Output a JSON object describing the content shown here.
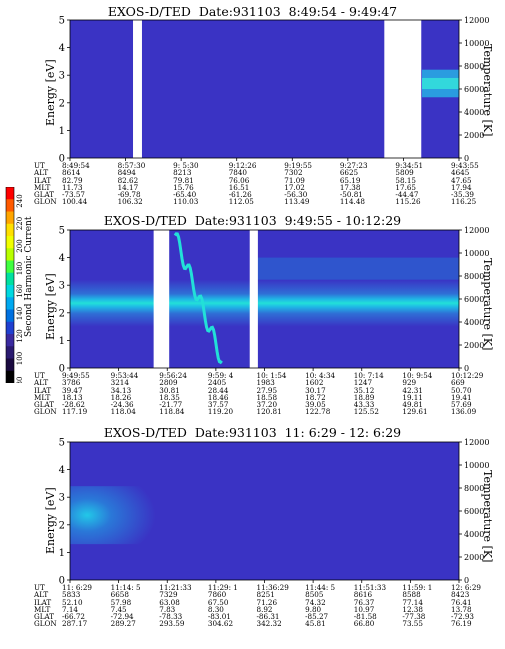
{
  "colors": {
    "background_plot": "#3a33c4",
    "gap": "#ffffff"
  },
  "colorbar": {
    "label": "Second Harmonic Current",
    "ticks": [
      "240",
      "220",
      "200",
      "180",
      "160",
      "140",
      "120",
      "100",
      "80"
    ]
  },
  "chart_data": [
    {
      "type": "heatmap",
      "title": "EXOS-D/TED  Date:931103  8:49:54 - 9:49:47",
      "ylabel": "Energy [eV]",
      "ylabel_right": "Temperature [K]",
      "ylim": [
        0,
        5
      ],
      "y_ticks": [
        "0",
        "1",
        "2",
        "3",
        "4",
        "5"
      ],
      "ylim_right": [
        0,
        12000
      ],
      "y_ticks_right": [
        "0",
        "2000",
        "4000",
        "6000",
        "8000",
        "10000",
        "12000"
      ],
      "gaps": [
        [
          0.162,
          0.185
        ],
        [
          0.808,
          0.903
        ]
      ],
      "table": {
        "rows": [
          {
            "label": "UT",
            "values": [
              "8:49:54",
              "8:57:30",
              "9: 5:30",
              "9:12:26",
              "9:19:55",
              "9:27:23",
              "9:34:51",
              "9:43:55"
            ]
          },
          {
            "label": "ALT",
            "values": [
              "8614",
              "8494",
              "8213",
              "7840",
              "7302",
              "6625",
              "5809",
              "4645"
            ]
          },
          {
            "label": "ILAT",
            "values": [
              "82.79",
              "82.62",
              "79.81",
              "76.06",
              "71.09",
              "65.19",
              "58.15",
              "47.65"
            ]
          },
          {
            "label": "MLT",
            "values": [
              "11.73",
              "14.17",
              "15.76",
              "16.51",
              "17.02",
              "17.38",
              "17.65",
              "17.94"
            ]
          },
          {
            "label": "GLAT",
            "values": [
              "-73.57",
              "-69.78",
              "-65.40",
              "-61.26",
              "-56.30",
              "-50.81",
              "-44.47",
              "-35.39"
            ]
          },
          {
            "label": "GLON",
            "values": [
              "100.44",
              "106.32",
              "110.03",
              "112.05",
              "113.49",
              "114.48",
              "115.26",
              "116.25"
            ]
          }
        ]
      }
    },
    {
      "type": "heatmap",
      "title": "EXOS-D/TED  Date:931103  9:49:55 - 10:12:29",
      "ylabel": "Energy [eV]",
      "ylabel_right": "Temperature [K]",
      "ylim": [
        0,
        5
      ],
      "y_ticks": [
        "0",
        "1",
        "2",
        "3",
        "4",
        "5"
      ],
      "ylim_right": [
        0,
        12000
      ],
      "y_ticks_right": [
        "0",
        "2000",
        "4000",
        "6000",
        "8000",
        "10000",
        "12000"
      ],
      "gaps": [
        [
          0.215,
          0.255
        ],
        [
          0.462,
          0.483
        ]
      ],
      "table": {
        "rows": [
          {
            "label": "UT",
            "values": [
              "9:49:55",
              "9:53:44",
              "9:56:24",
              "9:59: 4",
              "10: 1:54",
              "10: 4:34",
              "10: 7:14",
              "10: 9:54",
              "10:12:29"
            ]
          },
          {
            "label": "ALT",
            "values": [
              "3786",
              "3214",
              "2809",
              "2405",
              "1983",
              "1602",
              "1247",
              "929",
              "669"
            ]
          },
          {
            "label": "ILAT",
            "values": [
              "39.47",
              "34.13",
              "30.81",
              "28.44",
              "27.95",
              "30.17",
              "35.12",
              "42.31",
              "50.70"
            ]
          },
          {
            "label": "MLT",
            "values": [
              "18.13",
              "18.26",
              "18.35",
              "18.46",
              "18.58",
              "18.72",
              "18.89",
              "19.11",
              "19.41"
            ]
          },
          {
            "label": "GLAT",
            "values": [
              "-28.62",
              "-24.36",
              "-21.77",
              "37.57",
              "37.20",
              "39.05",
              "43.33",
              "49.81",
              "57.69"
            ]
          },
          {
            "label": "GLON",
            "values": [
              "117.19",
              "118.04",
              "118.84",
              "119.20",
              "120.81",
              "122.78",
              "125.52",
              "129.61",
              "136.09"
            ]
          }
        ]
      }
    },
    {
      "type": "heatmap",
      "title": "EXOS-D/TED  Date:931103  11: 6:29 - 12: 6:29",
      "ylabel": "Energy [eV]",
      "ylabel_right": "Temperature [K]",
      "ylim": [
        0,
        5
      ],
      "y_ticks": [
        "0",
        "1",
        "2",
        "3",
        "4",
        "5"
      ],
      "ylim_right": [
        0,
        12000
      ],
      "y_ticks_right": [
        "0",
        "2000",
        "4000",
        "6000",
        "8000",
        "10000",
        "12000"
      ],
      "gaps": [],
      "table": {
        "rows": [
          {
            "label": "UT",
            "values": [
              "11: 6:29",
              "11:14: 5",
              "11:21:33",
              "11:29: 1",
              "11:36:29",
              "11:44: 5",
              "11:51:33",
              "11:59: 1",
              "12: 6:29"
            ]
          },
          {
            "label": "ALT",
            "values": [
              "5833",
              "6658",
              "7329",
              "7860",
              "8251",
              "8505",
              "8616",
              "8588",
              "8423"
            ]
          },
          {
            "label": "ILAT",
            "values": [
              "52.10",
              "57.98",
              "63.08",
              "67.50",
              "71.26",
              "74.32",
              "76.37",
              "77.14",
              "76.41"
            ]
          },
          {
            "label": "MLT",
            "values": [
              "7.14",
              "7.45",
              "7.83",
              "8.30",
              "8.92",
              "9.80",
              "10.97",
              "12.38",
              "13.78"
            ]
          },
          {
            "label": "GLAT",
            "values": [
              "-66.72",
              "-72.94",
              "-78.33",
              "-83.01",
              "-86.31",
              "-85.27",
              "-81.58",
              "-77.38",
              "-72.93"
            ]
          },
          {
            "label": "GLON",
            "values": [
              "287.17",
              "289.27",
              "293.59",
              "304.62",
              "342.32",
              "45.81",
              "66.80",
              "73.55",
              "76.19"
            ]
          }
        ]
      }
    }
  ]
}
